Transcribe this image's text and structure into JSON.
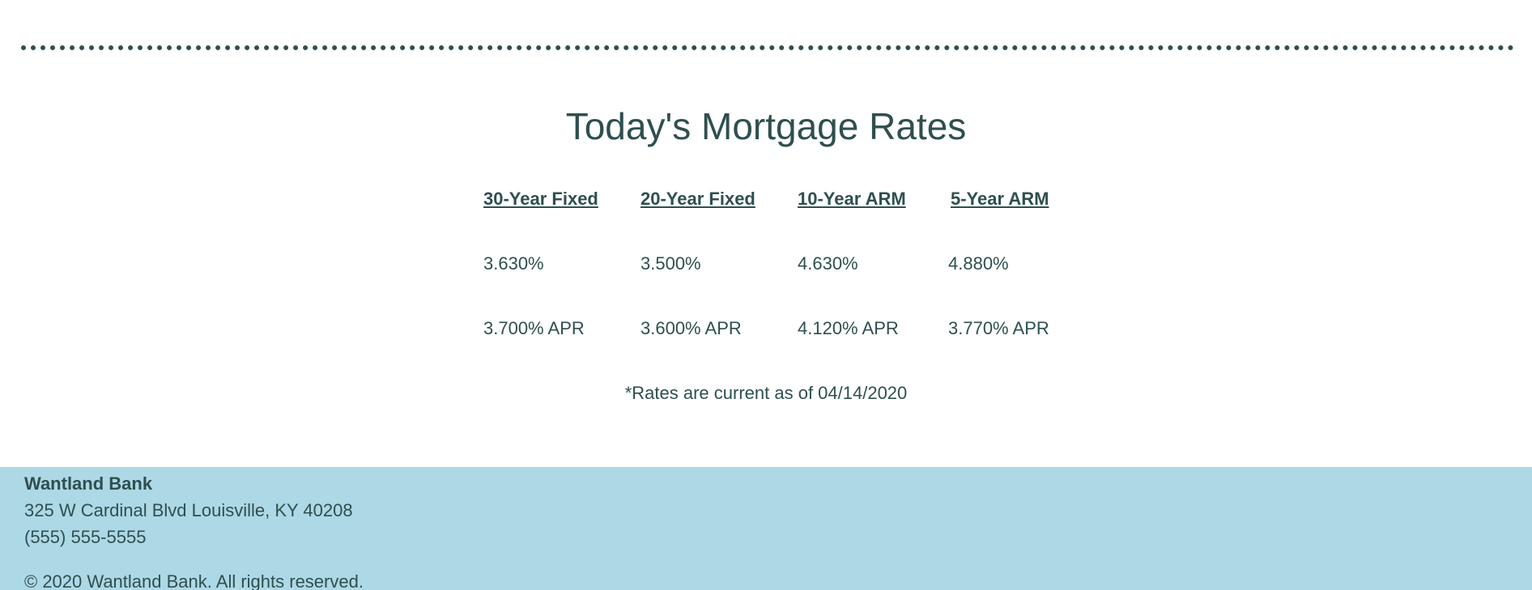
{
  "rates_section": {
    "title": "Today's Mortgage Rates",
    "columns": [
      {
        "heading": "30-Year Fixed",
        "rate": "3.630%",
        "apr": "3.700% APR"
      },
      {
        "heading": "20-Year Fixed",
        "rate": "3.500%",
        "apr": "3.600% APR"
      },
      {
        "heading": "10-Year ARM",
        "rate": "4.630%",
        "apr": "4.120% APR"
      },
      {
        "heading": "5-Year ARM",
        "rate": "4.880%",
        "apr": "3.770% APR"
      }
    ],
    "note": "*Rates are current as of 04/14/2020"
  },
  "footer": {
    "bank_name": "Wantland Bank",
    "address": "325 W Cardinal Blvd Louisville, KY 40208",
    "phone": "(555) 555-5555",
    "copyright": "© 2020 Wantland Bank. All rights reserved."
  },
  "colors": {
    "text": "#2f4f4f",
    "footer_background": "#add8e6",
    "page_background": "#ffffff"
  }
}
